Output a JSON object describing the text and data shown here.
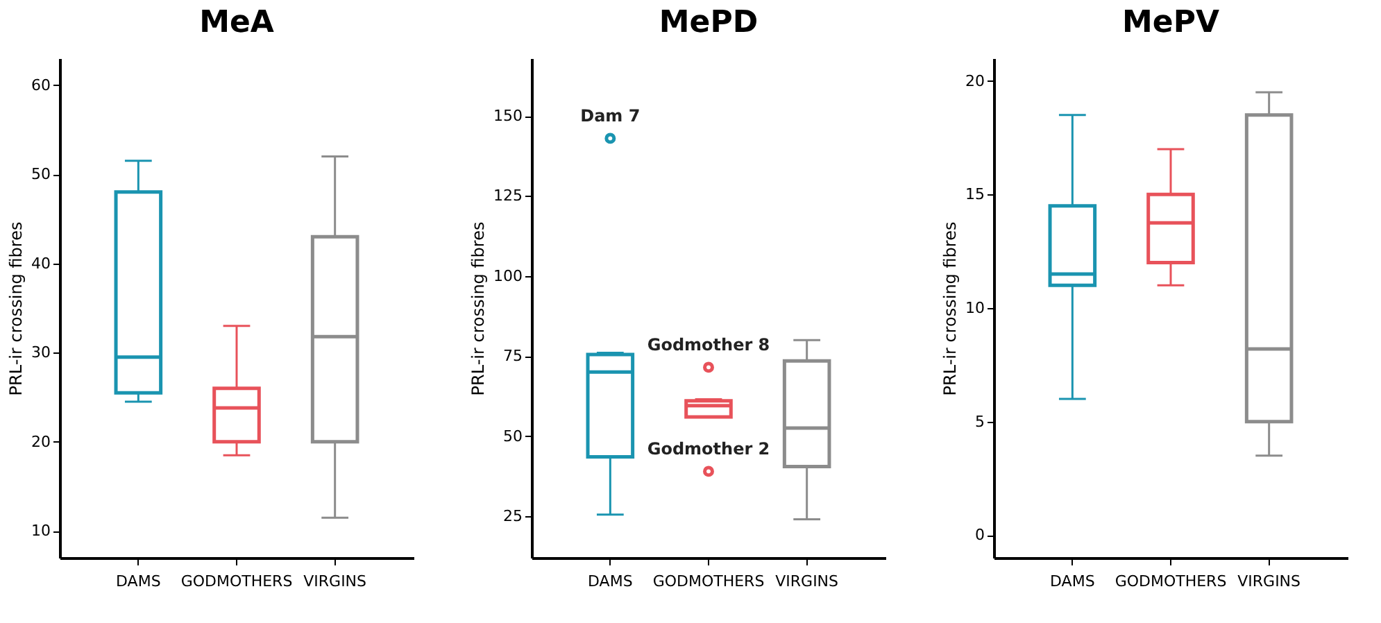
{
  "chart_data": [
    {
      "type": "box",
      "title": "MeA",
      "ylabel": "PRL-ir crossing fibres",
      "categories": [
        "DAMS",
        "GODMOTHERS",
        "VIRGINS"
      ],
      "colors": [
        "#1a94b0",
        "#e8525a",
        "#8c8c8c"
      ],
      "ylim": [
        7,
        63
      ],
      "yticks": [
        10,
        20,
        30,
        40,
        50,
        60
      ],
      "grid": false,
      "boxes": [
        {
          "low": 24.5,
          "q1": 25.5,
          "median": 29.5,
          "q3": 48,
          "high": 51.5
        },
        {
          "low": 18.5,
          "q1": 20,
          "median": 23.8,
          "q3": 26,
          "high": 33
        },
        {
          "low": 11.5,
          "q1": 20,
          "median": 31.8,
          "q3": 43,
          "high": 52
        }
      ]
    },
    {
      "type": "box",
      "title": "MePD",
      "ylabel": "PRL-ir crossing fibres",
      "categories": [
        "DAMS",
        "GODMOTHERS",
        "VIRGINS"
      ],
      "colors": [
        "#1a94b0",
        "#e8525a",
        "#8c8c8c"
      ],
      "ylim": [
        12,
        168
      ],
      "yticks": [
        25,
        50,
        75,
        100,
        125,
        150
      ],
      "grid": false,
      "boxes": [
        {
          "low": 25.5,
          "q1": 43.5,
          "median": 70,
          "q3": 75.5,
          "high": 76,
          "outliers": [
            143
          ]
        },
        {
          "low": 56,
          "q1": 56,
          "median": 59.5,
          "q3": 61,
          "high": 61.5,
          "outliers": [
            71.5,
            39
          ]
        },
        {
          "low": 24,
          "q1": 40.5,
          "median": 52.5,
          "q3": 73.5,
          "high": 80
        }
      ],
      "annotations": [
        "Dam 7",
        "Godmother 8",
        "Godmother 2"
      ]
    },
    {
      "type": "box",
      "title": "MePV",
      "ylabel": "PRL-ir crossing fibres",
      "categories": [
        "DAMS",
        "GODMOTHERS",
        "VIRGINS"
      ],
      "colors": [
        "#1a94b0",
        "#e8525a",
        "#8c8c8c"
      ],
      "ylim": [
        -1,
        21
      ],
      "yticks": [
        0,
        5,
        10,
        15,
        20
      ],
      "grid": false,
      "boxes": [
        {
          "low": 6,
          "q1": 11,
          "median": 11.5,
          "q3": 14.5,
          "high": 18.5
        },
        {
          "low": 11,
          "q1": 12,
          "median": 13.75,
          "q3": 15,
          "high": 17
        },
        {
          "low": 3.5,
          "q1": 5,
          "median": 8.2,
          "q3": 18.5,
          "high": 19.5
        }
      ]
    }
  ]
}
